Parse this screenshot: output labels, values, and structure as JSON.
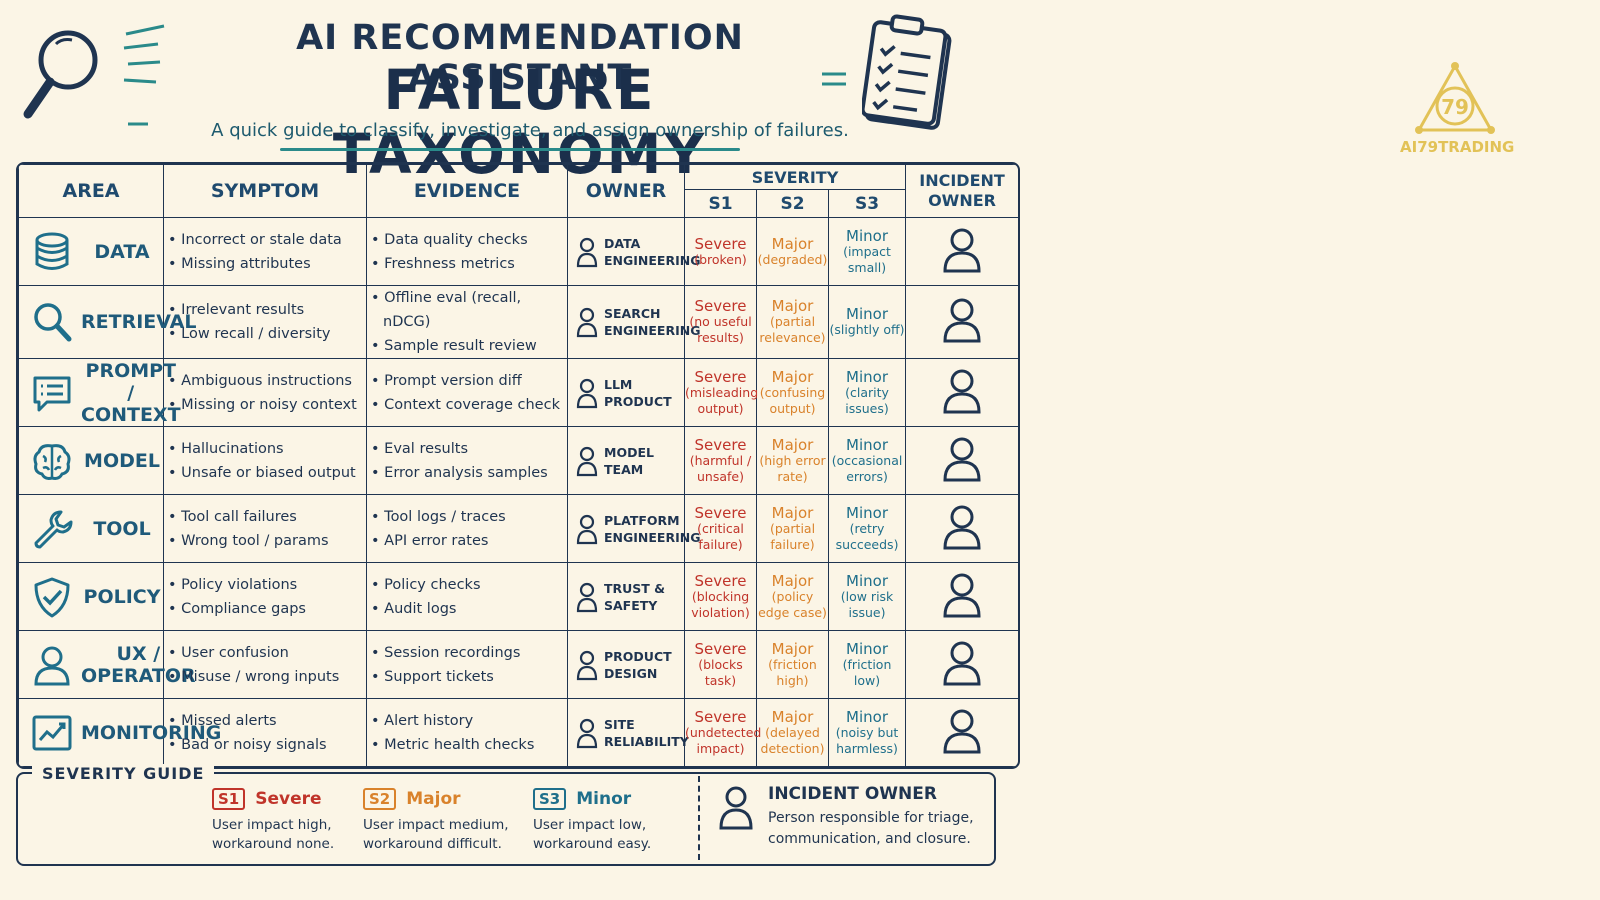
{
  "header": {
    "title_line1": "AI RECOMMENDATION ASSISTANT",
    "title_line2": "FAILURE TAXONOMY",
    "subtitle": "A quick guide to classify, investigate, and assign ownership of failures."
  },
  "table": {
    "headers": {
      "area": "AREA",
      "symptom": "SYMPTOM",
      "evidence": "EVIDENCE",
      "owner": "OWNER",
      "severity": "SEVERITY",
      "s1": "S1",
      "s2": "S2",
      "s3": "S3",
      "incident_owner_1": "INCIDENT",
      "incident_owner_2": "OWNER"
    },
    "rows": [
      {
        "area1": "DATA",
        "area2": "",
        "icon": "database-icon",
        "symptoms": [
          "Incorrect or stale data",
          "Missing attributes"
        ],
        "evidence": [
          "Data quality checks",
          "Freshness metrics"
        ],
        "owner1": "DATA",
        "owner2": "ENGINEERING",
        "s1": "Severe",
        "s1d": "(broken)",
        "s2": "Major",
        "s2d": "(degraded)",
        "s3": "Minor",
        "s3d": "(impact small)"
      },
      {
        "area1": "RETRIEVAL",
        "area2": "",
        "icon": "magnifier-icon",
        "symptoms": [
          "Irrelevant results",
          "Low recall / diversity"
        ],
        "evidence": [
          "Offline eval (recall, nDCG)",
          "Sample result review"
        ],
        "owner1": "SEARCH",
        "owner2": "ENGINEERING",
        "s1": "Severe",
        "s1d": "(no useful results)",
        "s2": "Major",
        "s2d": "(partial relevance)",
        "s3": "Minor",
        "s3d": "(slightly off)"
      },
      {
        "area1": "PROMPT /",
        "area2": "CONTEXT",
        "icon": "chat-bubble-icon",
        "symptoms": [
          "Ambiguous instructions",
          "Missing or noisy context"
        ],
        "evidence": [
          "Prompt version diff",
          "Context coverage check"
        ],
        "owner1": "LLM",
        "owner2": "PRODUCT",
        "s1": "Severe",
        "s1d": "(misleading output)",
        "s2": "Major",
        "s2d": "(confusing output)",
        "s3": "Minor",
        "s3d": "(clarity issues)"
      },
      {
        "area1": "MODEL",
        "area2": "",
        "icon": "brain-icon",
        "symptoms": [
          "Hallucinations",
          "Unsafe or biased output"
        ],
        "evidence": [
          "Eval results",
          "Error analysis samples"
        ],
        "owner1": "MODEL",
        "owner2": "TEAM",
        "s1": "Severe",
        "s1d": "(harmful / unsafe)",
        "s2": "Major",
        "s2d": "(high error rate)",
        "s3": "Minor",
        "s3d": "(occasional errors)"
      },
      {
        "area1": "TOOL",
        "area2": "",
        "icon": "wrench-icon",
        "symptoms": [
          "Tool call failures",
          "Wrong tool / params"
        ],
        "evidence": [
          "Tool logs / traces",
          "API error rates"
        ],
        "owner1": "PLATFORM",
        "owner2": "ENGINEERING",
        "s1": "Severe",
        "s1d": "(critical failure)",
        "s2": "Major",
        "s2d": "(partial failure)",
        "s3": "Minor",
        "s3d": "(retry succeeds)"
      },
      {
        "area1": "POLICY",
        "area2": "",
        "icon": "shield-check-icon",
        "symptoms": [
          "Policy violations",
          "Compliance gaps"
        ],
        "evidence": [
          "Policy checks",
          "Audit logs"
        ],
        "owner1": "TRUST &",
        "owner2": "SAFETY",
        "s1": "Severe",
        "s1d": "(blocking violation)",
        "s2": "Major",
        "s2d": "(policy edge case)",
        "s3": "Minor",
        "s3d": "(low risk issue)"
      },
      {
        "area1": "UX /",
        "area2": "OPERATOR",
        "icon": "user-icon",
        "symptoms": [
          "User confusion",
          "Misuse / wrong inputs"
        ],
        "evidence": [
          "Session recordings",
          "Support tickets"
        ],
        "owner1": "PRODUCT",
        "owner2": "DESIGN",
        "s1": "Severe",
        "s1d": "(blocks task)",
        "s2": "Major",
        "s2d": "(friction high)",
        "s3": "Minor",
        "s3d": "(friction low)"
      },
      {
        "area1": "MONITORING",
        "area2": "",
        "icon": "line-chart-icon",
        "symptoms": [
          "Missed alerts",
          "Bad or noisy signals"
        ],
        "evidence": [
          "Alert history",
          "Metric health checks"
        ],
        "owner1": "SITE",
        "owner2": "RELIABILITY",
        "s1": "Severe",
        "s1d": "(undetected impact)",
        "s2": "Major",
        "s2d": "(delayed detection)",
        "s3": "Minor",
        "s3d": "(noisy but harmless)"
      }
    ]
  },
  "guide": {
    "title": "SEVERITY GUIDE",
    "items": [
      {
        "badge": "S1",
        "name": "Severe",
        "line1": "User impact high,",
        "line2": "workaround none."
      },
      {
        "badge": "S2",
        "name": "Major",
        "line1": "User impact medium,",
        "line2": "workaround difficult."
      },
      {
        "badge": "S3",
        "name": "Minor",
        "line1": "User impact low,",
        "line2": "workaround easy."
      }
    ],
    "incident_title": "INCIDENT OWNER",
    "incident_line1": "Person responsible for triage,",
    "incident_line2": "communication, and closure."
  },
  "logo": {
    "text": "AI79TRADING",
    "mark": "79"
  },
  "colors": {
    "ink": "#1f3450",
    "s1": "#c0342a",
    "s2": "#d9822b",
    "s3": "#1f6f8b",
    "logo": "#e2c257",
    "teal": "#2a8a8a"
  }
}
